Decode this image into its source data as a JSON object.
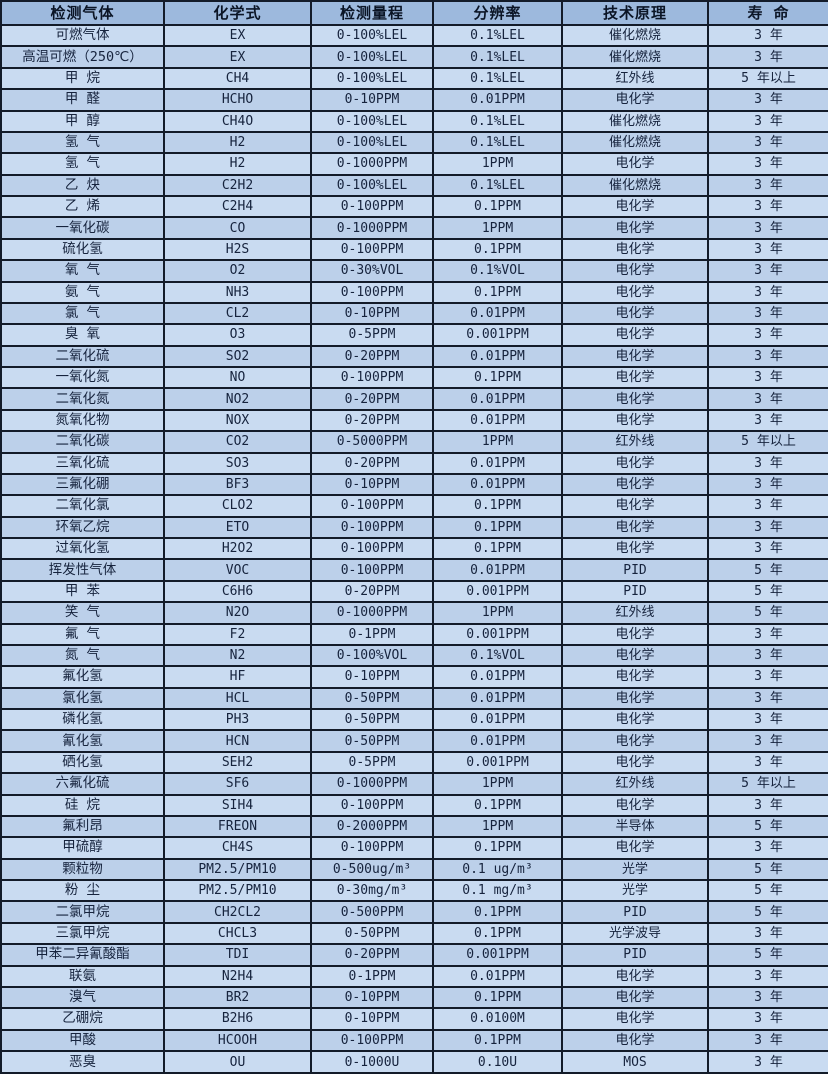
{
  "table": {
    "colors": {
      "header_bg": "#9DB9DD",
      "row_light": "#C9DBF1",
      "row_dark": "#BCD0EA",
      "border": "#131B29",
      "text": "#16233D"
    },
    "columns": [
      "检测气体",
      "化学式",
      "检测量程",
      "分辨率",
      "技术原理",
      "寿  命"
    ],
    "rows": [
      [
        "可燃气体",
        "EX",
        "0-100%LEL",
        "0.1%LEL",
        "催化燃烧",
        "3 年"
      ],
      [
        "高温可燃（250℃）",
        "EX",
        "0-100%LEL",
        "0.1%LEL",
        "催化燃烧",
        "3 年"
      ],
      [
        "甲  烷",
        "CH4",
        "0-100%LEL",
        "0.1%LEL",
        "红外线",
        "5 年以上"
      ],
      [
        "甲  醛",
        "HCHO",
        "0-10PPM",
        "0.01PPM",
        "电化学",
        "3 年"
      ],
      [
        "甲  醇",
        "CH4O",
        "0-100%LEL",
        "0.1%LEL",
        "催化燃烧",
        "3 年"
      ],
      [
        "氢  气",
        "H2",
        "0-100%LEL",
        "0.1%LEL",
        "催化燃烧",
        "3 年"
      ],
      [
        "氢  气",
        "H2",
        "0-1000PPM",
        "1PPM",
        "电化学",
        "3 年"
      ],
      [
        "乙  炔",
        "C2H2",
        "0-100%LEL",
        "0.1%LEL",
        "催化燃烧",
        "3 年"
      ],
      [
        "乙  烯",
        "C2H4",
        "0-100PPM",
        "0.1PPM",
        "电化学",
        "3 年"
      ],
      [
        "一氧化碳",
        "CO",
        "0-1000PPM",
        "1PPM",
        "电化学",
        "3 年"
      ],
      [
        "硫化氢",
        "H2S",
        "0-100PPM",
        "0.1PPM",
        "电化学",
        "3 年"
      ],
      [
        "氧  气",
        "O2",
        "0-30%VOL",
        "0.1%VOL",
        "电化学",
        "3 年"
      ],
      [
        "氨  气",
        "NH3",
        "0-100PPM",
        "0.1PPM",
        "电化学",
        "3 年"
      ],
      [
        "氯  气",
        "CL2",
        "0-10PPM",
        "0.01PPM",
        "电化学",
        "3 年"
      ],
      [
        "臭  氧",
        "O3",
        "0-5PPM",
        "0.001PPM",
        "电化学",
        "3 年"
      ],
      [
        "二氧化硫",
        "SO2",
        "0-20PPM",
        "0.01PPM",
        "电化学",
        "3 年"
      ],
      [
        "一氧化氮",
        "NO",
        "0-100PPM",
        "0.1PPM",
        "电化学",
        "3 年"
      ],
      [
        "二氧化氮",
        "NO2",
        "0-20PPM",
        "0.01PPM",
        "电化学",
        "3 年"
      ],
      [
        "氮氧化物",
        "NOX",
        "0-20PPM",
        "0.01PPM",
        "电化学",
        "3 年"
      ],
      [
        "二氧化碳",
        "CO2",
        "0-5000PPM",
        "1PPM",
        "红外线",
        "5 年以上"
      ],
      [
        "三氧化硫",
        "SO3",
        "0-20PPM",
        "0.01PPM",
        "电化学",
        "3 年"
      ],
      [
        "三氟化硼",
        "BF3",
        "0-10PPM",
        "0.01PPM",
        "电化学",
        "3 年"
      ],
      [
        "二氧化氯",
        "CLO2",
        "0-100PPM",
        "0.1PPM",
        "电化学",
        "3 年"
      ],
      [
        "环氧乙烷",
        "ETO",
        "0-100PPM",
        "0.1PPM",
        "电化学",
        "3 年"
      ],
      [
        "过氧化氢",
        "H2O2",
        "0-100PPM",
        "0.1PPM",
        "电化学",
        "3 年"
      ],
      [
        "挥发性气体",
        "VOC",
        "0-100PPM",
        "0.01PPM",
        "PID",
        "5 年"
      ],
      [
        "甲  苯",
        "C6H6",
        "0-20PPM",
        "0.001PPM",
        "PID",
        "5 年"
      ],
      [
        "笑  气",
        "N2O",
        "0-1000PPM",
        "1PPM",
        "红外线",
        "5 年"
      ],
      [
        "氟  气",
        "F2",
        "0-1PPM",
        "0.001PPM",
        "电化学",
        "3 年"
      ],
      [
        "氮  气",
        "N2",
        "0-100%VOL",
        "0.1%VOL",
        "电化学",
        "3 年"
      ],
      [
        "氟化氢",
        "HF",
        "0-10PPM",
        "0.01PPM",
        "电化学",
        "3 年"
      ],
      [
        "氯化氢",
        "HCL",
        "0-50PPM",
        "0.01PPM",
        "电化学",
        "3 年"
      ],
      [
        "磷化氢",
        "PH3",
        "0-50PPM",
        "0.01PPM",
        "电化学",
        "3 年"
      ],
      [
        "氰化氢",
        "HCN",
        "0-50PPM",
        "0.01PPM",
        "电化学",
        "3 年"
      ],
      [
        "硒化氢",
        "SEH2",
        "0-5PPM",
        "0.001PPM",
        "电化学",
        "3 年"
      ],
      [
        "六氟化硫",
        "SF6",
        "0-1000PPM",
        "1PPM",
        "红外线",
        "5 年以上"
      ],
      [
        "硅  烷",
        "SIH4",
        "0-100PPM",
        "0.1PPM",
        "电化学",
        "3 年"
      ],
      [
        "氟利昂",
        "FREON",
        "0-2000PPM",
        "1PPM",
        "半导体",
        "5 年"
      ],
      [
        "甲硫醇",
        "CH4S",
        "0-100PPM",
        "0.1PPM",
        "电化学",
        "3 年"
      ],
      [
        "颗粒物",
        "PM2.5/PM10",
        "0-500ug/m³",
        "0.1 ug/m³",
        "光学",
        "5 年"
      ],
      [
        "粉  尘",
        "PM2.5/PM10",
        "0-30mg/m³",
        "0.1 mg/m³",
        "光学",
        "5 年"
      ],
      [
        "二氯甲烷",
        "CH2CL2",
        "0-500PPM",
        "0.1PPM",
        "PID",
        "5 年"
      ],
      [
        "三氯甲烷",
        "CHCL3",
        "0-50PPM",
        "0.1PPM",
        "光学波导",
        "3 年"
      ],
      [
        "甲苯二异氰酸酯",
        "TDI",
        "0-20PPM",
        "0.001PPM",
        "PID",
        "5 年"
      ],
      [
        "联氨",
        "N2H4",
        "0-1PPM",
        "0.01PPM",
        "电化学",
        "3 年"
      ],
      [
        "溴气",
        "BR2",
        "0-10PPM",
        "0.1PPM",
        "电化学",
        "3 年"
      ],
      [
        "乙硼烷",
        "B2H6",
        "0-10PPM",
        "0.0100M",
        "电化学",
        "3 年"
      ],
      [
        "甲酸",
        "HCOOH",
        "0-100PPM",
        "0.1PPM",
        "电化学",
        "3 年"
      ],
      [
        "恶臭",
        "OU",
        "0-1000U",
        "0.10U",
        "MOS",
        "3 年"
      ]
    ]
  }
}
